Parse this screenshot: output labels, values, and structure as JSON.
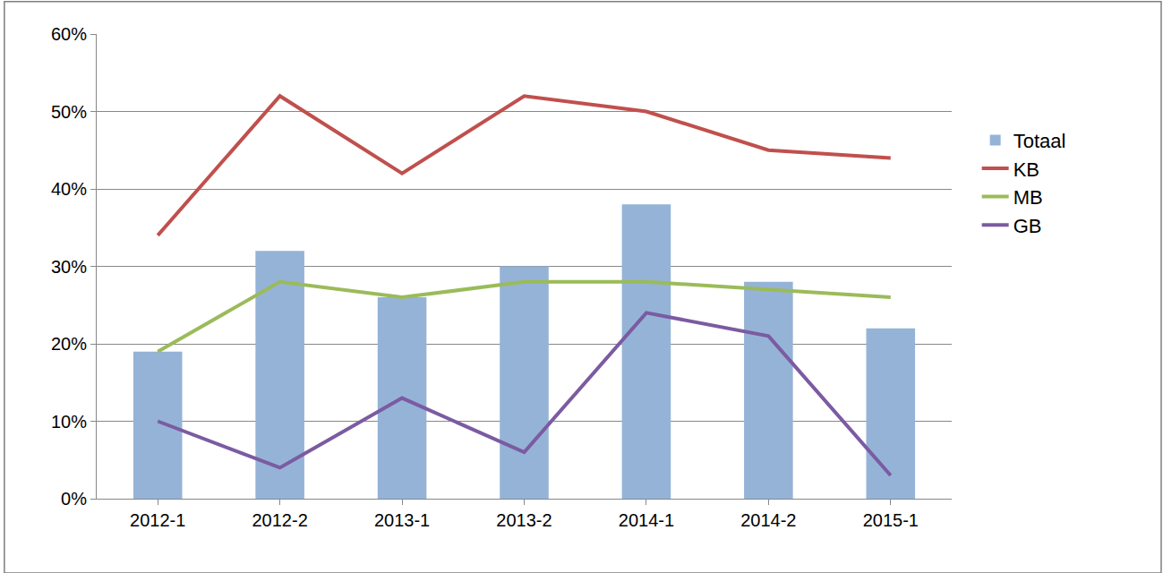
{
  "chart_data": {
    "type": "bar",
    "categories": [
      "2012-1",
      "2012-2",
      "2013-1",
      "2013-2",
      "2014-1",
      "2014-2",
      "2015-1"
    ],
    "series": [
      {
        "name": "Totaal",
        "type": "bar",
        "color": "#95b3d7",
        "values": [
          19,
          32,
          26,
          30,
          38,
          28,
          22
        ]
      },
      {
        "name": "KB",
        "type": "line",
        "color": "#c0504d",
        "values": [
          34,
          52,
          42,
          52,
          50,
          45,
          44
        ]
      },
      {
        "name": "MB",
        "type": "line",
        "color": "#9bbb59",
        "values": [
          19,
          28,
          26,
          28,
          28,
          27,
          26
        ]
      },
      {
        "name": "GB",
        "type": "line",
        "color": "#7b5ba1",
        "values": [
          10,
          4,
          13,
          6,
          24,
          21,
          3
        ]
      }
    ],
    "ylim": [
      0,
      60
    ],
    "yticks": [
      {
        "value": 0,
        "label": "0%"
      },
      {
        "value": 10,
        "label": "10%"
      },
      {
        "value": 20,
        "label": "20%"
      },
      {
        "value": 30,
        "label": "30%"
      },
      {
        "value": 40,
        "label": "40%"
      },
      {
        "value": 50,
        "label": "50%"
      },
      {
        "value": 60,
        "label": "60%"
      }
    ],
    "grid": true,
    "legend": "right"
  }
}
